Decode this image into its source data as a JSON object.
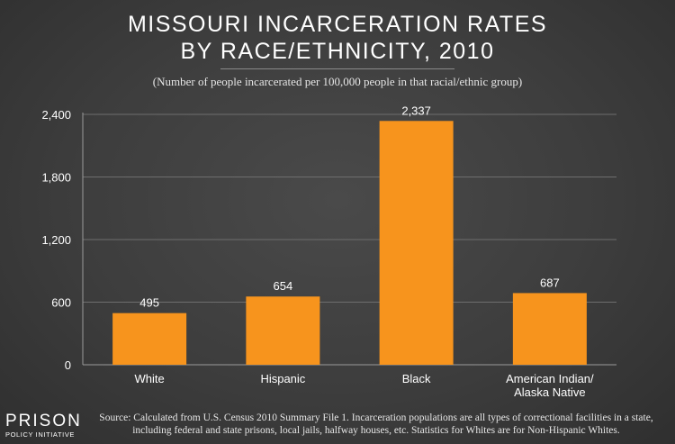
{
  "chart_data": {
    "type": "bar",
    "title_line1": "MISSOURI INCARCERATION RATES",
    "title_line2": "BY RACE/ETHNICITY, 2010",
    "subtitle": "(Number of people incarcerated per 100,000 people in that racial/ethnic group)",
    "categories": [
      [
        "White"
      ],
      [
        "Hispanic"
      ],
      [
        "Black"
      ],
      [
        "American Indian/",
        "Alaska Native"
      ]
    ],
    "values": [
      495,
      654,
      2337,
      687
    ],
    "value_labels": [
      "495",
      "654",
      "2,337",
      "687"
    ],
    "yticks": [
      0,
      600,
      1200,
      1800,
      2400
    ],
    "ytick_labels": [
      "0",
      "600",
      "1,200",
      "1,800",
      "2,400"
    ],
    "ylim": [
      0,
      2400
    ],
    "grid": true,
    "xlabel": "",
    "ylabel": "",
    "bar_color": "#f7941d",
    "source": "Source: Calculated from U.S. Census 2010 Summary File 1. Incarceration populations are all types of correctional facilities in a state, including federal and state prisons, local jails, halfway houses, etc. Statistics for Whites are for Non-Hispanic Whites."
  },
  "logo": {
    "top": "PRISON",
    "bottom": "POLICY INITIATIVE"
  }
}
